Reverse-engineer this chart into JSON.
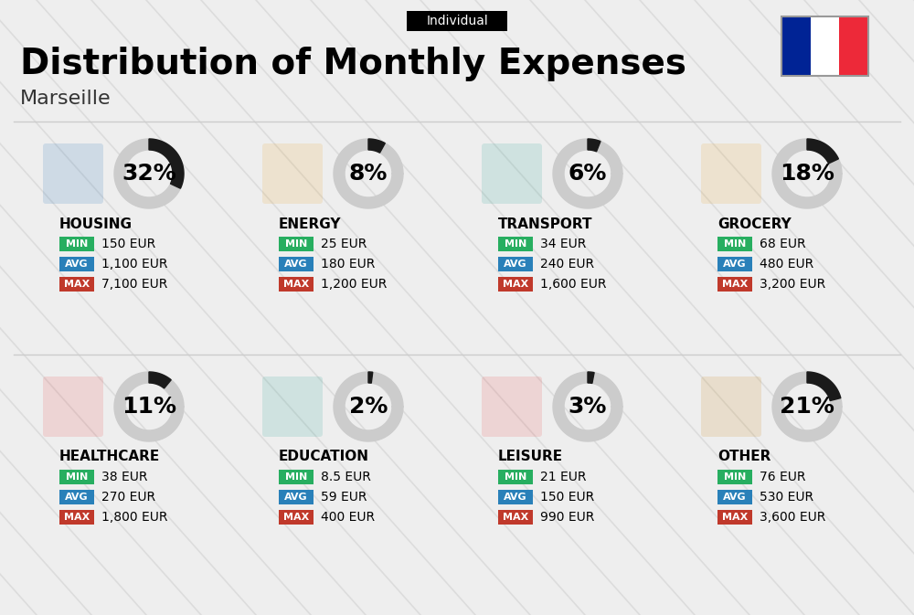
{
  "title": "Distribution of Monthly Expenses",
  "subtitle": "Individual",
  "city": "Marseille",
  "bg_color": "#eeeeee",
  "categories": [
    {
      "name": "HOUSING",
      "pct": 32,
      "min": "150 EUR",
      "avg": "1,100 EUR",
      "max": "7,100 EUR",
      "row": 0,
      "col": 0
    },
    {
      "name": "ENERGY",
      "pct": 8,
      "min": "25 EUR",
      "avg": "180 EUR",
      "max": "1,200 EUR",
      "row": 0,
      "col": 1
    },
    {
      "name": "TRANSPORT",
      "pct": 6,
      "min": "34 EUR",
      "avg": "240 EUR",
      "max": "1,600 EUR",
      "row": 0,
      "col": 2
    },
    {
      "name": "GROCERY",
      "pct": 18,
      "min": "68 EUR",
      "avg": "480 EUR",
      "max": "3,200 EUR",
      "row": 0,
      "col": 3
    },
    {
      "name": "HEALTHCARE",
      "pct": 11,
      "min": "38 EUR",
      "avg": "270 EUR",
      "max": "1,800 EUR",
      "row": 1,
      "col": 0
    },
    {
      "name": "EDUCATION",
      "pct": 2,
      "min": "8.5 EUR",
      "avg": "59 EUR",
      "max": "400 EUR",
      "row": 1,
      "col": 1
    },
    {
      "name": "LEISURE",
      "pct": 3,
      "min": "21 EUR",
      "avg": "150 EUR",
      "max": "990 EUR",
      "row": 1,
      "col": 2
    },
    {
      "name": "OTHER",
      "pct": 21,
      "min": "76 EUR",
      "avg": "530 EUR",
      "max": "3,600 EUR",
      "row": 1,
      "col": 3
    }
  ],
  "min_color": "#27ae60",
  "avg_color": "#2980b9",
  "max_color": "#c0392b",
  "ring_filled_color": "#1a1a1a",
  "ring_empty_color": "#cccccc",
  "flag_blue": "#002395",
  "flag_white": "#ffffff",
  "flag_red": "#ED2939",
  "diag_color": "#d5d5d5",
  "title_fontsize": 28,
  "subtitle_fontsize": 10,
  "city_fontsize": 16,
  "cat_fontsize": 11,
  "val_fontsize": 11,
  "pct_fontsize": 18,
  "badge_fontsize": 8
}
